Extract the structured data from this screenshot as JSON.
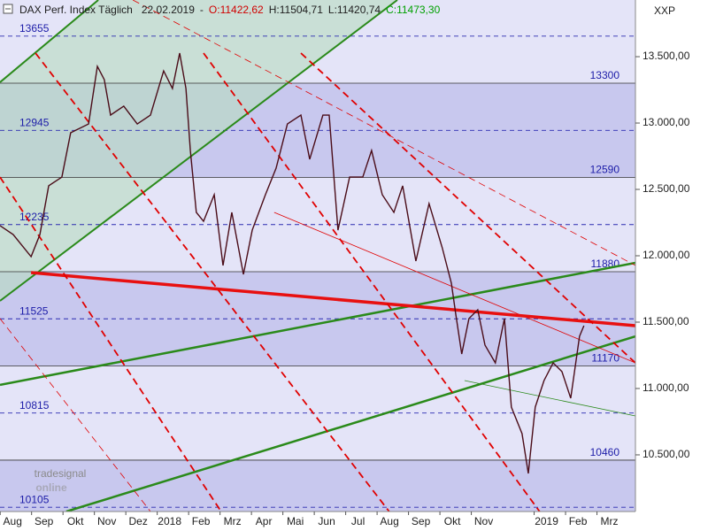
{
  "chart_data": {
    "type": "line",
    "title": "DAX Perf. Index Täglich",
    "date": "22.02.2019",
    "quote_labels": [
      "O:11422,62",
      "H:11504,71",
      "L:11420,74",
      "C:11473,30"
    ],
    "quote_colors": [
      "#d00000",
      "#202020",
      "#202020",
      "#00a000"
    ],
    "ylabel": "XXP",
    "watermark": [
      "tradesignal",
      "online"
    ],
    "xlim": [
      -0.4,
      19.83
    ],
    "ylim": [
      10073,
      13927
    ],
    "xticks": [
      {
        "value": 0,
        "label": "Aug"
      },
      {
        "value": 1,
        "label": "Sep"
      },
      {
        "value": 2,
        "label": "Okt"
      },
      {
        "value": 3,
        "label": "Nov"
      },
      {
        "value": 4,
        "label": "Dez"
      },
      {
        "value": 5,
        "label": "2018"
      },
      {
        "value": 6,
        "label": "Feb"
      },
      {
        "value": 7,
        "label": "Mrz"
      },
      {
        "value": 8,
        "label": "Apr"
      },
      {
        "value": 9,
        "label": "Mai"
      },
      {
        "value": 10,
        "label": "Jun"
      },
      {
        "value": 11,
        "label": "Jul"
      },
      {
        "value": 12,
        "label": "Aug"
      },
      {
        "value": 13,
        "label": "Sep"
      },
      {
        "value": 14,
        "label": "Okt"
      },
      {
        "value": 15,
        "label": "Nov"
      },
      {
        "value": 17,
        "label": "2019"
      },
      {
        "value": 18,
        "label": "Feb"
      },
      {
        "value": 19,
        "label": "Mrz"
      }
    ],
    "yticks": [
      {
        "value": 10500,
        "label": "10.500,00"
      },
      {
        "value": 11000,
        "label": "11.000,00"
      },
      {
        "value": 11500,
        "label": "11.500,00"
      },
      {
        "value": 12000,
        "label": "12.000,00"
      },
      {
        "value": 12500,
        "label": "12.500,00"
      },
      {
        "value": 13000,
        "label": "13.000,00"
      },
      {
        "value": 13500,
        "label": "13.500,00"
      }
    ],
    "levels": {
      "values": [
        13655,
        13300,
        12945,
        12590,
        12235,
        11880,
        11525,
        11170,
        10815,
        10460,
        10105
      ],
      "styles": [
        "dashed",
        "solid",
        "dashed",
        "solid",
        "dashed",
        "solid",
        "dashed",
        "solid",
        "dashed",
        "solid",
        "dashed"
      ],
      "label_color": "#1c1ca8",
      "band_colors": [
        "#c8c8ee",
        "#e4e4f8"
      ]
    },
    "series": [
      {
        "name": "DAX",
        "color": "#4a0c18",
        "x": [
          -0.4,
          0.02,
          0.59,
          0.87,
          1.15,
          1.57,
          1.85,
          2.42,
          2.7,
          2.92,
          3.12,
          3.54,
          3.97,
          4.39,
          4.81,
          5.09,
          5.32,
          5.52,
          5.66,
          5.85,
          6.08,
          6.42,
          6.7,
          6.98,
          7.35,
          7.63,
          8.05,
          8.39,
          8.75,
          9.18,
          9.46,
          9.88,
          10.08,
          10.36,
          10.73,
          11.15,
          11.43,
          11.77,
          12.14,
          12.42,
          12.84,
          13.26,
          13.68,
          13.97,
          14.11,
          14.3,
          14.53,
          14.81,
          15.04,
          15.37,
          15.66,
          15.88,
          16.22,
          16.42,
          16.64,
          16.92,
          17.21,
          17.49,
          17.77,
          18.05,
          18.19
        ],
        "values": [
          12227,
          12160,
          11993,
          12160,
          12527,
          12593,
          12927,
          12993,
          13427,
          13327,
          13060,
          13127,
          12993,
          13060,
          13393,
          13260,
          13527,
          13260,
          12793,
          12327,
          12260,
          12460,
          11927,
          12327,
          11860,
          12193,
          12460,
          12660,
          12993,
          13060,
          12727,
          13060,
          13060,
          12193,
          12593,
          12593,
          12793,
          12460,
          12327,
          12527,
          11960,
          12393,
          12060,
          11793,
          11560,
          11260,
          11527,
          11593,
          11327,
          11193,
          11527,
          10860,
          10660,
          10360,
          10860,
          11060,
          11193,
          11127,
          10927,
          11393,
          11473
        ]
      }
    ],
    "trendlines": [
      {
        "color": "#2a8a1a",
        "width": 2,
        "dashed": false,
        "x": [
          -0.4,
          2.73
        ],
        "y": [
          13307,
          13927
        ]
      },
      {
        "color": "#2a8a1a",
        "width": 2,
        "dashed": false,
        "x": [
          -0.4,
          12.25
        ],
        "y": [
          11660,
          13927
        ]
      },
      {
        "color": "#2a8a1a",
        "width": 2.5,
        "dashed": false,
        "x": [
          -0.4,
          19.83
        ],
        "y": [
          11027,
          11947
        ]
      },
      {
        "color": "#2a8a1a",
        "width": 2.5,
        "dashed": false,
        "x": [
          1.71,
          19.83
        ],
        "y": [
          10073,
          11393
        ]
      },
      {
        "color": "#2a8a1a",
        "width": 0.8,
        "dashed": false,
        "x": [
          14.39,
          19.83
        ],
        "y": [
          11060,
          10793
        ]
      },
      {
        "color": "#e00000",
        "width": 0.8,
        "dashed": false,
        "x": [
          8.33,
          19.83
        ],
        "y": [
          12327,
          11193
        ]
      },
      {
        "color": "#e81010",
        "width": 3.5,
        "dashed": false,
        "x": [
          0.59,
          19.83
        ],
        "y": [
          11873,
          11473
        ]
      },
      {
        "color": "#e00000",
        "width": 1.8,
        "dashed": true,
        "x": [
          0.73,
          11.99
        ],
        "y": [
          13527,
          10073
        ]
      },
      {
        "color": "#e00000",
        "width": 1.8,
        "dashed": true,
        "x": [
          -0.4,
          6.64
        ],
        "y": [
          12593,
          10073
        ]
      },
      {
        "color": "#e00000",
        "width": 1.8,
        "dashed": true,
        "x": [
          6.08,
          16.78
        ],
        "y": [
          13527,
          10073
        ]
      },
      {
        "color": "#e00000",
        "width": 1.8,
        "dashed": true,
        "x": [
          9.18,
          19.83
        ],
        "y": [
          13527,
          11193
        ]
      },
      {
        "color": "#e00000",
        "width": 0.8,
        "dashed": true,
        "x": [
          3.83,
          19.83
        ],
        "y": [
          13927,
          11927
        ]
      },
      {
        "color": "#e00000",
        "width": 0.8,
        "dashed": true,
        "x": [
          -0.4,
          4.39
        ],
        "y": [
          11527,
          10073
        ]
      }
    ],
    "channel_fill": "#b8dcc0"
  }
}
